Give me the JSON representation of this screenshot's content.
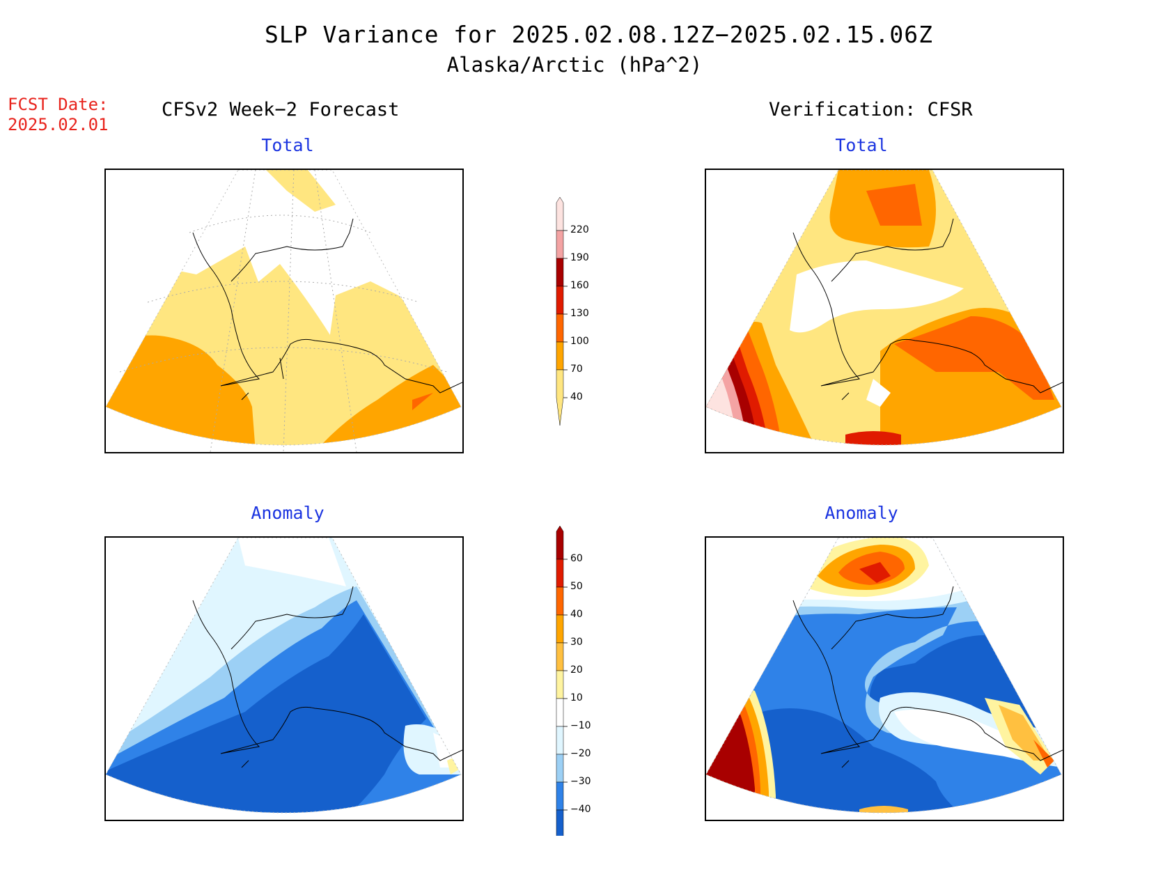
{
  "title": {
    "line1": "SLP Variance for 2025.02.08.12Z−2025.02.15.06Z",
    "line2": "Alaska/Arctic (hPa^2)"
  },
  "fcst_date": {
    "label": "FCST Date:",
    "value": "2025.02.01"
  },
  "columns": {
    "left": "CFSv2 Week−2 Forecast",
    "right": "Verification: CFSR"
  },
  "panels": {
    "top_left": {
      "title": "Total"
    },
    "top_right": {
      "title": "Total"
    },
    "bottom_left": {
      "title": "Anomaly"
    },
    "bottom_right": {
      "title": "Anomaly"
    }
  },
  "colorbars": {
    "total": {
      "labels": [
        "220",
        "190",
        "160",
        "130",
        "100",
        "70",
        "40"
      ],
      "colors": [
        "#fde3e0",
        "#f4a3a3",
        "#a80000",
        "#e01b00",
        "#ff6600",
        "#ffa500",
        "#ffe680"
      ]
    },
    "anomaly": {
      "labels": [
        "60",
        "50",
        "40",
        "30",
        "20",
        "10",
        "−10",
        "−20",
        "−30",
        "−40"
      ],
      "colors": [
        "#a80000",
        "#e01b00",
        "#ff6600",
        "#ffa500",
        "#ffc040",
        "#fff4a0",
        "#ffffff",
        "#e0f6ff",
        "#9cd0f5",
        "#2f82e8",
        "#1560cc"
      ]
    }
  }
}
